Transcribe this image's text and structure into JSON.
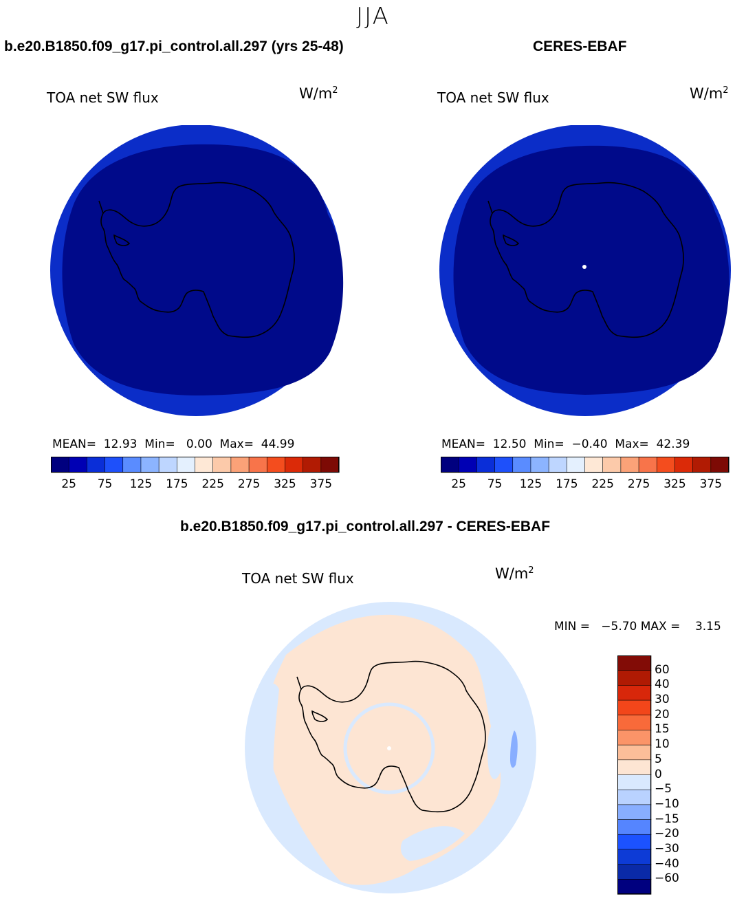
{
  "season": "JJA",
  "colors": {
    "scale": [
      "#00007f",
      "#0000b4",
      "#0a2ed8",
      "#1e50fa",
      "#5a8cff",
      "#8cb4ff",
      "#bed6ff",
      "#e4f0fe",
      "#fee8d6",
      "#fccaaa",
      "#fba278",
      "#f8744a",
      "#f44d1e",
      "#db2a08",
      "#b11b03",
      "#7d0a05"
    ],
    "diff": [
      "#00007f",
      "#0a2aa8",
      "#0d3bd6",
      "#1c52ff",
      "#5585ff",
      "#88aeff",
      "#b9d2ff",
      "#d9e9fe",
      "#fde5d3",
      "#fcbe99",
      "#fb9468",
      "#f86a3a",
      "#f2461a",
      "#d8270a",
      "#b01a03",
      "#820c06"
    ],
    "model_ring": "#0b2dc8",
    "model_interior": "#000a8a",
    "obs_ring": "#0b2dc8",
    "obs_interior": "#000a8a",
    "diff_ocean": "#d9e9fe",
    "diff_ice": "#fde5d3"
  },
  "panels": {
    "model": {
      "title": "b.e20.B1850.f09_g17.pi_control.all.297 (yrs 25-48)",
      "variable": "TOA net SW flux",
      "units_base": "W/m",
      "units_exp": "2",
      "stats": "MEAN=  12.93  Min=   0.00  Max=  44.99"
    },
    "obs": {
      "title": "CERES-EBAF",
      "variable": "TOA net SW flux",
      "units_base": "W/m",
      "units_exp": "2",
      "stats": "MEAN=  12.50  Min=  −0.40  Max=  42.39"
    },
    "diff": {
      "title": "b.e20.B1850.f09_g17.pi_control.all.297 - CERES-EBAF",
      "variable": "TOA net SW flux",
      "units_base": "W/m",
      "units_exp": "2",
      "stats": "MIN =   −5.70 MAX =    3.15"
    }
  },
  "chart_data": [
    {
      "type": "heatmap",
      "title": "b.e20.B1850.f09_g17.pi_control.all.297 (yrs 25-48)",
      "variable": "TOA net SW flux",
      "units": "W/m2",
      "projection": "south polar stereographic",
      "mean": 12.93,
      "min": 0.0,
      "max": 44.99,
      "colorbar_ticks": [
        25,
        75,
        125,
        175,
        225,
        275,
        325,
        375
      ],
      "colorbar_labels": [
        "25",
        "75",
        "125",
        "175",
        "225",
        "275",
        "325",
        "375"
      ]
    },
    {
      "type": "heatmap",
      "title": "CERES-EBAF",
      "variable": "TOA net SW flux",
      "units": "W/m2",
      "projection": "south polar stereographic",
      "mean": 12.5,
      "min": -0.4,
      "max": 42.39,
      "colorbar_ticks": [
        25,
        75,
        125,
        175,
        225,
        275,
        325,
        375
      ],
      "colorbar_labels": [
        "25",
        "75",
        "125",
        "175",
        "225",
        "275",
        "325",
        "375"
      ]
    },
    {
      "type": "heatmap",
      "title": "b.e20.B1850.f09_g17.pi_control.all.297 - CERES-EBAF",
      "variable": "TOA net SW flux",
      "units": "W/m2",
      "projection": "south polar stereographic",
      "min": -5.7,
      "max": 3.15,
      "colorbar_levels": [
        60,
        40,
        30,
        20,
        15,
        10,
        5,
        0,
        -5,
        -10,
        -15,
        -20,
        -30,
        -40,
        -60
      ],
      "colorbar_labels": [
        "60",
        "40",
        "30",
        "20",
        "15",
        "10",
        "5",
        "0",
        "−5",
        "−10",
        "−15",
        "−20",
        "−30",
        "−40",
        "−60"
      ]
    }
  ]
}
